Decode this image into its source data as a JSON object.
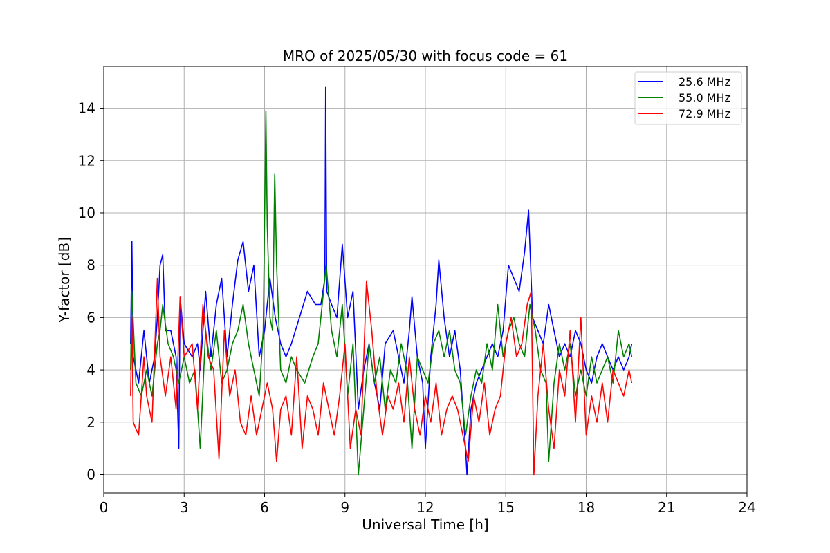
{
  "chart_data": {
    "type": "line",
    "title": "MRO of 2025/05/30 with focus code = 61",
    "xlabel": "Universal Time [h]",
    "ylabel": "Y-factor [dB]",
    "xlim": [
      0,
      24
    ],
    "ylim": [
      -0.7,
      15.6
    ],
    "xticks": [
      0,
      3,
      6,
      9,
      12,
      15,
      18,
      21,
      24
    ],
    "yticks": [
      0,
      2,
      4,
      6,
      8,
      10,
      12,
      14
    ],
    "grid": true,
    "legend_position": "top-right",
    "series": [
      {
        "name": "25.6 MHz",
        "color": "#0000ff",
        "points": [
          [
            1.0,
            5.0
          ],
          [
            1.05,
            8.9
          ],
          [
            1.1,
            4.5
          ],
          [
            1.3,
            3.5
          ],
          [
            1.5,
            5.5
          ],
          [
            1.7,
            3.5
          ],
          [
            1.9,
            4.5
          ],
          [
            2.0,
            6.0
          ],
          [
            2.1,
            8.0
          ],
          [
            2.2,
            8.4
          ],
          [
            2.3,
            5.5
          ],
          [
            2.5,
            5.5
          ],
          [
            2.7,
            4.5
          ],
          [
            2.8,
            1.0
          ],
          [
            2.85,
            6.8
          ],
          [
            3.0,
            5.0
          ],
          [
            3.3,
            4.5
          ],
          [
            3.5,
            5.0
          ],
          [
            3.6,
            4.0
          ],
          [
            3.8,
            7.0
          ],
          [
            4.0,
            4.5
          ],
          [
            4.2,
            6.5
          ],
          [
            4.4,
            7.5
          ],
          [
            4.6,
            4.5
          ],
          [
            4.8,
            6.5
          ],
          [
            5.0,
            8.2
          ],
          [
            5.2,
            8.9
          ],
          [
            5.4,
            7.0
          ],
          [
            5.6,
            8.0
          ],
          [
            5.8,
            4.5
          ],
          [
            6.0,
            5.5
          ],
          [
            6.2,
            7.5
          ],
          [
            6.4,
            6.0
          ],
          [
            6.6,
            5.0
          ],
          [
            6.8,
            4.5
          ],
          [
            7.0,
            5.0
          ],
          [
            7.3,
            6.0
          ],
          [
            7.6,
            7.0
          ],
          [
            7.9,
            6.5
          ],
          [
            8.1,
            6.5
          ],
          [
            8.25,
            7.5
          ],
          [
            8.28,
            14.8
          ],
          [
            8.32,
            7.0
          ],
          [
            8.5,
            6.5
          ],
          [
            8.7,
            6.0
          ],
          [
            8.9,
            8.8
          ],
          [
            9.1,
            6.0
          ],
          [
            9.3,
            7.0
          ],
          [
            9.5,
            2.5
          ],
          [
            9.7,
            4.0
          ],
          [
            9.9,
            5.0
          ],
          [
            10.1,
            3.5
          ],
          [
            10.3,
            2.5
          ],
          [
            10.5,
            5.0
          ],
          [
            10.8,
            5.5
          ],
          [
            11.0,
            4.5
          ],
          [
            11.2,
            3.5
          ],
          [
            11.4,
            5.5
          ],
          [
            11.5,
            6.8
          ],
          [
            11.7,
            4.5
          ],
          [
            11.9,
            3.5
          ],
          [
            12.0,
            1.0
          ],
          [
            12.2,
            4.5
          ],
          [
            12.4,
            6.5
          ],
          [
            12.5,
            8.2
          ],
          [
            12.7,
            6.0
          ],
          [
            12.9,
            4.5
          ],
          [
            13.1,
            5.5
          ],
          [
            13.3,
            4.0
          ],
          [
            13.5,
            1.0
          ],
          [
            13.55,
            0.0
          ],
          [
            13.7,
            2.5
          ],
          [
            13.9,
            3.5
          ],
          [
            14.1,
            4.0
          ],
          [
            14.3,
            4.5
          ],
          [
            14.5,
            5.0
          ],
          [
            14.7,
            4.5
          ],
          [
            14.9,
            5.5
          ],
          [
            15.1,
            8.0
          ],
          [
            15.3,
            7.5
          ],
          [
            15.5,
            7.0
          ],
          [
            15.7,
            8.5
          ],
          [
            15.85,
            10.1
          ],
          [
            16.0,
            6.0
          ],
          [
            16.2,
            5.5
          ],
          [
            16.4,
            5.0
          ],
          [
            16.6,
            6.5
          ],
          [
            16.8,
            5.5
          ],
          [
            17.0,
            4.5
          ],
          [
            17.2,
            5.0
          ],
          [
            17.4,
            4.5
          ],
          [
            17.6,
            5.5
          ],
          [
            17.8,
            5.0
          ],
          [
            18.0,
            4.0
          ],
          [
            18.2,
            3.5
          ],
          [
            18.4,
            4.5
          ],
          [
            18.6,
            5.0
          ],
          [
            18.8,
            4.5
          ],
          [
            19.0,
            4.0
          ],
          [
            19.2,
            4.5
          ],
          [
            19.4,
            4.0
          ],
          [
            19.6,
            4.5
          ],
          [
            19.7,
            5.0
          ]
        ]
      },
      {
        "name": "55.0 MHz",
        "color": "#008000",
        "points": [
          [
            1.0,
            4.0
          ],
          [
            1.05,
            7.0
          ],
          [
            1.2,
            3.5
          ],
          [
            1.4,
            3.0
          ],
          [
            1.6,
            4.0
          ],
          [
            1.8,
            3.0
          ],
          [
            2.0,
            5.0
          ],
          [
            2.1,
            5.5
          ],
          [
            2.2,
            6.5
          ],
          [
            2.4,
            5.0
          ],
          [
            2.6,
            4.5
          ],
          [
            2.8,
            3.5
          ],
          [
            3.0,
            4.5
          ],
          [
            3.2,
            3.5
          ],
          [
            3.4,
            4.0
          ],
          [
            3.6,
            1.0
          ],
          [
            3.8,
            5.5
          ],
          [
            4.0,
            4.0
          ],
          [
            4.2,
            5.5
          ],
          [
            4.4,
            3.5
          ],
          [
            4.6,
            4.0
          ],
          [
            4.8,
            5.0
          ],
          [
            5.0,
            5.5
          ],
          [
            5.2,
            6.5
          ],
          [
            5.4,
            5.0
          ],
          [
            5.6,
            4.0
          ],
          [
            5.8,
            3.0
          ],
          [
            5.95,
            5.5
          ],
          [
            6.05,
            13.9
          ],
          [
            6.1,
            9.5
          ],
          [
            6.2,
            6.0
          ],
          [
            6.3,
            5.5
          ],
          [
            6.38,
            11.5
          ],
          [
            6.45,
            8.0
          ],
          [
            6.6,
            4.0
          ],
          [
            6.8,
            3.5
          ],
          [
            7.0,
            4.5
          ],
          [
            7.2,
            4.0
          ],
          [
            7.5,
            3.5
          ],
          [
            7.8,
            4.5
          ],
          [
            8.0,
            5.0
          ],
          [
            8.3,
            8.0
          ],
          [
            8.5,
            5.5
          ],
          [
            8.7,
            4.5
          ],
          [
            8.9,
            6.5
          ],
          [
            9.1,
            3.0
          ],
          [
            9.3,
            5.0
          ],
          [
            9.5,
            0.0
          ],
          [
            9.7,
            2.5
          ],
          [
            9.9,
            5.0
          ],
          [
            10.1,
            3.5
          ],
          [
            10.3,
            4.5
          ],
          [
            10.5,
            2.5
          ],
          [
            10.7,
            4.0
          ],
          [
            10.9,
            3.5
          ],
          [
            11.1,
            5.0
          ],
          [
            11.3,
            4.0
          ],
          [
            11.5,
            1.0
          ],
          [
            11.7,
            4.5
          ],
          [
            11.9,
            4.0
          ],
          [
            12.1,
            3.5
          ],
          [
            12.3,
            5.0
          ],
          [
            12.5,
            5.5
          ],
          [
            12.7,
            4.5
          ],
          [
            12.9,
            5.5
          ],
          [
            13.1,
            4.0
          ],
          [
            13.3,
            3.5
          ],
          [
            13.5,
            1.5
          ],
          [
            13.7,
            3.0
          ],
          [
            13.9,
            4.0
          ],
          [
            14.1,
            3.5
          ],
          [
            14.3,
            5.0
          ],
          [
            14.5,
            4.0
          ],
          [
            14.7,
            6.5
          ],
          [
            14.9,
            4.5
          ],
          [
            15.1,
            5.5
          ],
          [
            15.3,
            6.0
          ],
          [
            15.5,
            5.0
          ],
          [
            15.7,
            4.5
          ],
          [
            15.9,
            6.5
          ],
          [
            16.1,
            5.5
          ],
          [
            16.3,
            4.0
          ],
          [
            16.5,
            3.5
          ],
          [
            16.6,
            0.5
          ],
          [
            16.8,
            3.5
          ],
          [
            17.0,
            5.0
          ],
          [
            17.2,
            4.0
          ],
          [
            17.4,
            5.0
          ],
          [
            17.6,
            3.0
          ],
          [
            17.8,
            4.0
          ],
          [
            18.0,
            3.0
          ],
          [
            18.2,
            4.5
          ],
          [
            18.4,
            3.5
          ],
          [
            18.6,
            4.0
          ],
          [
            18.8,
            4.5
          ],
          [
            19.0,
            3.5
          ],
          [
            19.2,
            5.5
          ],
          [
            19.4,
            4.5
          ],
          [
            19.6,
            5.0
          ],
          [
            19.7,
            4.5
          ]
        ]
      },
      {
        "name": "72.9 MHz",
        "color": "#ff0000",
        "points": [
          [
            1.0,
            3.0
          ],
          [
            1.05,
            6.0
          ],
          [
            1.1,
            2.0
          ],
          [
            1.3,
            1.5
          ],
          [
            1.5,
            4.5
          ],
          [
            1.6,
            3.0
          ],
          [
            1.8,
            2.0
          ],
          [
            2.0,
            7.5
          ],
          [
            2.1,
            4.5
          ],
          [
            2.3,
            3.0
          ],
          [
            2.5,
            4.5
          ],
          [
            2.7,
            2.5
          ],
          [
            2.85,
            6.8
          ],
          [
            3.0,
            4.5
          ],
          [
            3.3,
            5.0
          ],
          [
            3.5,
            2.5
          ],
          [
            3.7,
            6.5
          ],
          [
            3.9,
            4.5
          ],
          [
            4.1,
            4.0
          ],
          [
            4.3,
            0.6
          ],
          [
            4.5,
            5.5
          ],
          [
            4.7,
            3.0
          ],
          [
            4.9,
            4.0
          ],
          [
            5.1,
            2.0
          ],
          [
            5.3,
            1.5
          ],
          [
            5.5,
            3.0
          ],
          [
            5.7,
            1.5
          ],
          [
            5.9,
            2.5
          ],
          [
            6.1,
            3.5
          ],
          [
            6.3,
            2.5
          ],
          [
            6.45,
            0.5
          ],
          [
            6.6,
            2.5
          ],
          [
            6.8,
            3.0
          ],
          [
            7.0,
            1.5
          ],
          [
            7.2,
            4.5
          ],
          [
            7.4,
            1.0
          ],
          [
            7.6,
            3.0
          ],
          [
            7.8,
            2.5
          ],
          [
            8.0,
            1.5
          ],
          [
            8.2,
            3.5
          ],
          [
            8.4,
            2.5
          ],
          [
            8.6,
            1.5
          ],
          [
            8.8,
            3.0
          ],
          [
            9.0,
            5.0
          ],
          [
            9.2,
            1.0
          ],
          [
            9.4,
            2.5
          ],
          [
            9.6,
            1.5
          ],
          [
            9.8,
            7.4
          ],
          [
            10.0,
            5.5
          ],
          [
            10.2,
            3.0
          ],
          [
            10.4,
            1.5
          ],
          [
            10.6,
            3.0
          ],
          [
            10.8,
            2.5
          ],
          [
            11.0,
            3.5
          ],
          [
            11.2,
            2.0
          ],
          [
            11.4,
            4.5
          ],
          [
            11.6,
            2.5
          ],
          [
            11.8,
            1.5
          ],
          [
            12.0,
            3.0
          ],
          [
            12.2,
            2.0
          ],
          [
            12.4,
            3.5
          ],
          [
            12.6,
            1.5
          ],
          [
            12.8,
            2.5
          ],
          [
            13.0,
            3.0
          ],
          [
            13.2,
            2.5
          ],
          [
            13.4,
            1.5
          ],
          [
            13.6,
            0.5
          ],
          [
            13.8,
            3.0
          ],
          [
            14.0,
            2.0
          ],
          [
            14.2,
            3.5
          ],
          [
            14.4,
            1.5
          ],
          [
            14.6,
            2.5
          ],
          [
            14.8,
            3.0
          ],
          [
            15.0,
            5.0
          ],
          [
            15.2,
            6.0
          ],
          [
            15.4,
            4.5
          ],
          [
            15.6,
            5.0
          ],
          [
            15.8,
            6.5
          ],
          [
            15.95,
            7.0
          ],
          [
            16.05,
            0.0
          ],
          [
            16.2,
            3.0
          ],
          [
            16.4,
            5.0
          ],
          [
            16.6,
            2.5
          ],
          [
            16.8,
            1.0
          ],
          [
            17.0,
            4.0
          ],
          [
            17.2,
            3.0
          ],
          [
            17.4,
            5.5
          ],
          [
            17.6,
            2.0
          ],
          [
            17.8,
            6.0
          ],
          [
            18.0,
            1.5
          ],
          [
            18.2,
            3.0
          ],
          [
            18.4,
            2.0
          ],
          [
            18.6,
            3.5
          ],
          [
            18.8,
            2.0
          ],
          [
            19.0,
            4.0
          ],
          [
            19.2,
            3.5
          ],
          [
            19.4,
            3.0
          ],
          [
            19.6,
            4.0
          ],
          [
            19.7,
            3.5
          ]
        ]
      }
    ]
  }
}
